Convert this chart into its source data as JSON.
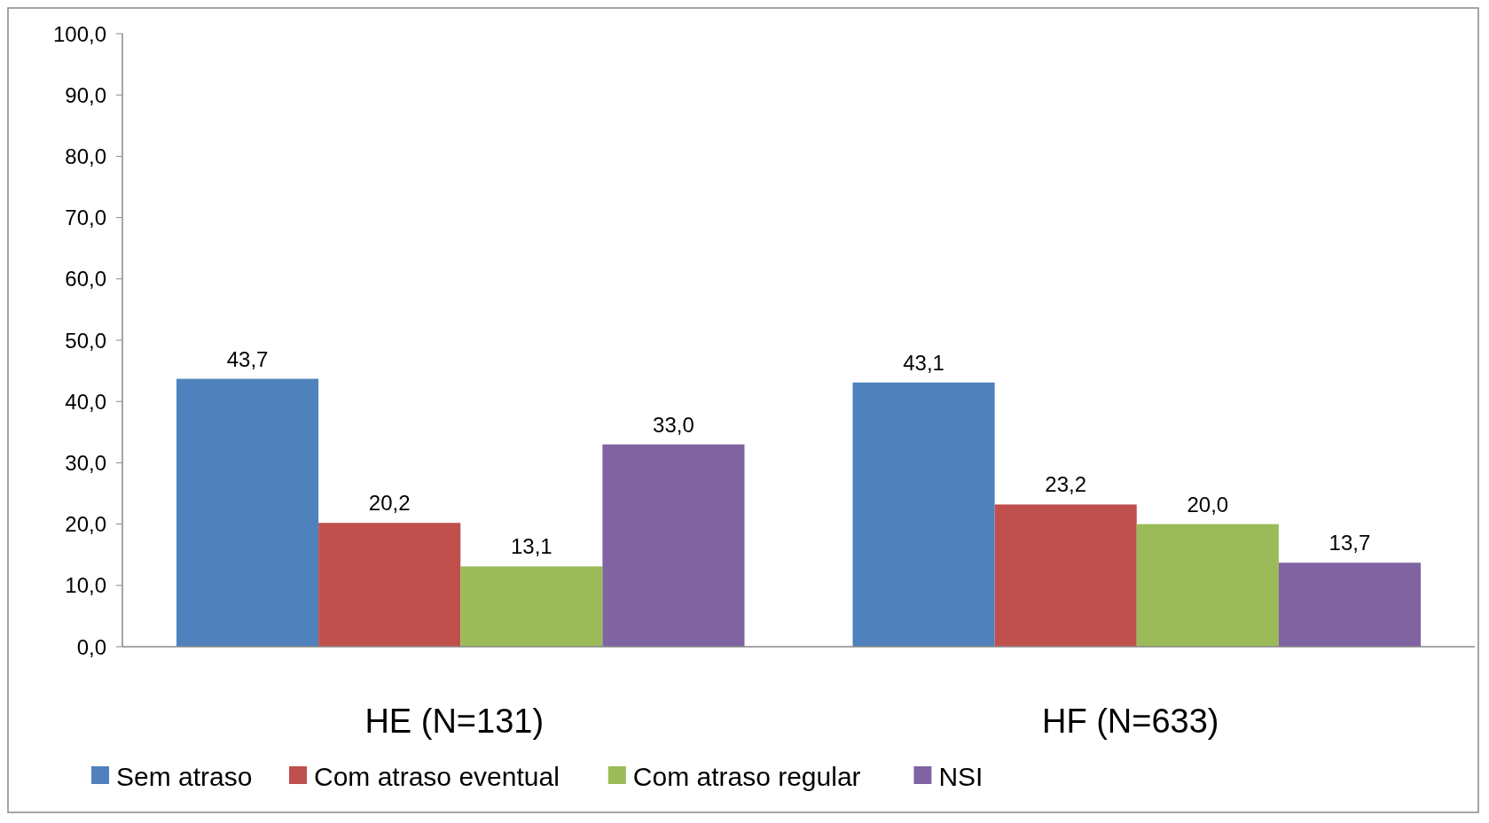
{
  "chart_data": {
    "type": "bar",
    "categories": [
      "HE (N=131)",
      "HF (N=633)"
    ],
    "series": [
      {
        "name": "Sem atraso",
        "color": "#4f81bd",
        "values": [
          43.7,
          43.1
        ],
        "value_labels": [
          "43,7",
          "43,1"
        ]
      },
      {
        "name": "Com atraso eventual",
        "color": "#c0504d",
        "values": [
          20.2,
          23.2
        ],
        "value_labels": [
          "20,2",
          "23,2"
        ]
      },
      {
        "name": "Com atraso regular",
        "color": "#9bbb59",
        "values": [
          13.1,
          20.0
        ],
        "value_labels": [
          "13,1",
          "20,0"
        ]
      },
      {
        "name": "NSI",
        "color": "#8064a2",
        "values": [
          33.0,
          13.7
        ],
        "value_labels": [
          "33,0",
          "13,7"
        ]
      }
    ],
    "ylim": [
      0,
      100
    ],
    "yticks": [
      {
        "value": 0,
        "label": "0,0"
      },
      {
        "value": 10,
        "label": "10,0"
      },
      {
        "value": 20,
        "label": "20,0"
      },
      {
        "value": 30,
        "label": "30,0"
      },
      {
        "value": 40,
        "label": "40,0"
      },
      {
        "value": 50,
        "label": "50,0"
      },
      {
        "value": 60,
        "label": "60,0"
      },
      {
        "value": 70,
        "label": "70,0"
      },
      {
        "value": 80,
        "label": "80,0"
      },
      {
        "value": 90,
        "label": "90,0"
      },
      {
        "value": 100,
        "label": "100,0"
      }
    ],
    "grid": false,
    "legend": "bottom"
  }
}
